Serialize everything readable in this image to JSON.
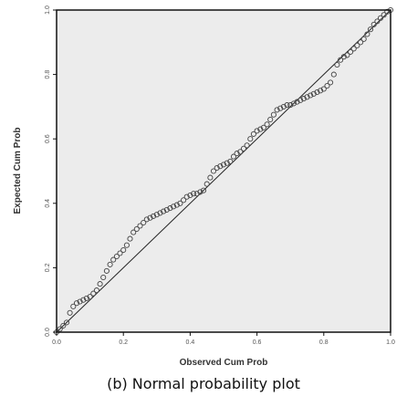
{
  "caption": "(b) Normal probability plot",
  "chart_data": {
    "type": "scatter",
    "title": "",
    "xlabel": "Observed Cum Prob",
    "ylabel": "Expected Cum Prob",
    "xlim": [
      0.0,
      1.0
    ],
    "ylim": [
      0.0,
      1.0
    ],
    "xticks": [
      "0.0",
      "0.2",
      "0.4",
      "0.6",
      "0.8",
      "1.0"
    ],
    "yticks": [
      "0.0",
      "0.2",
      "0.4",
      "0.6",
      "0.8",
      "1.0"
    ],
    "grid": false,
    "reference_line": [
      [
        0.0,
        0.0
      ],
      [
        1.0,
        1.0
      ]
    ],
    "series": [
      {
        "marker": "circle",
        "x": [
          0.0,
          0.01,
          0.02,
          0.03,
          0.04,
          0.05,
          0.06,
          0.07,
          0.08,
          0.09,
          0.1,
          0.11,
          0.12,
          0.13,
          0.14,
          0.15,
          0.16,
          0.17,
          0.18,
          0.19,
          0.2,
          0.21,
          0.22,
          0.23,
          0.24,
          0.25,
          0.26,
          0.27,
          0.28,
          0.29,
          0.3,
          0.31,
          0.32,
          0.33,
          0.34,
          0.35,
          0.36,
          0.37,
          0.38,
          0.39,
          0.4,
          0.41,
          0.42,
          0.43,
          0.44,
          0.45,
          0.46,
          0.47,
          0.48,
          0.49,
          0.5,
          0.51,
          0.52,
          0.53,
          0.54,
          0.55,
          0.56,
          0.57,
          0.58,
          0.59,
          0.6,
          0.61,
          0.62,
          0.63,
          0.64,
          0.65,
          0.66,
          0.67,
          0.68,
          0.69,
          0.7,
          0.71,
          0.72,
          0.73,
          0.74,
          0.75,
          0.76,
          0.77,
          0.78,
          0.79,
          0.8,
          0.81,
          0.82,
          0.83,
          0.84,
          0.85,
          0.86,
          0.87,
          0.88,
          0.89,
          0.9,
          0.91,
          0.92,
          0.93,
          0.94,
          0.95,
          0.96,
          0.97,
          0.98,
          0.99,
          1.0
        ],
        "y": [
          0.0,
          0.01,
          0.02,
          0.03,
          0.06,
          0.08,
          0.09,
          0.095,
          0.1,
          0.105,
          0.11,
          0.12,
          0.13,
          0.15,
          0.17,
          0.19,
          0.21,
          0.225,
          0.235,
          0.245,
          0.255,
          0.27,
          0.29,
          0.31,
          0.32,
          0.33,
          0.34,
          0.35,
          0.355,
          0.36,
          0.365,
          0.37,
          0.375,
          0.38,
          0.385,
          0.39,
          0.395,
          0.4,
          0.41,
          0.42,
          0.425,
          0.43,
          0.43,
          0.435,
          0.44,
          0.46,
          0.48,
          0.5,
          0.51,
          0.515,
          0.52,
          0.525,
          0.53,
          0.545,
          0.555,
          0.56,
          0.57,
          0.58,
          0.6,
          0.615,
          0.625,
          0.63,
          0.635,
          0.645,
          0.66,
          0.675,
          0.69,
          0.695,
          0.7,
          0.705,
          0.705,
          0.71,
          0.715,
          0.72,
          0.725,
          0.73,
          0.735,
          0.74,
          0.745,
          0.75,
          0.755,
          0.765,
          0.775,
          0.8,
          0.83,
          0.845,
          0.855,
          0.86,
          0.87,
          0.88,
          0.89,
          0.9,
          0.91,
          0.925,
          0.94,
          0.955,
          0.965,
          0.975,
          0.985,
          0.995,
          1.0
        ]
      }
    ]
  },
  "style": {
    "plot_background": "#ececec",
    "frame_color": "#111111",
    "reference_line_color": "#222222",
    "marker_edge_color": "#444444"
  }
}
